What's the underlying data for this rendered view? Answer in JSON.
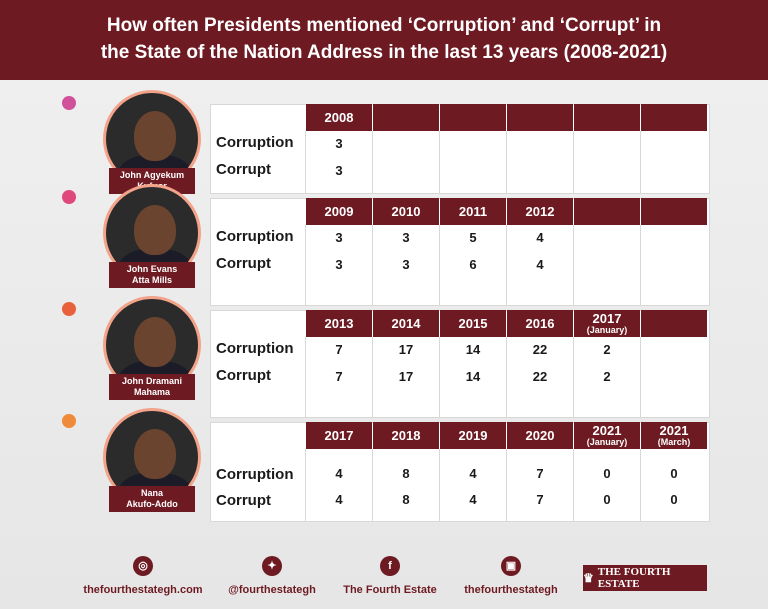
{
  "title_line1": "How often Presidents mentioned ‘Corruption’ and ‘Corrupt’ in",
  "title_line2": "the State of the Nation Address in the last 13 years (2008-2021)",
  "row_labels": {
    "corruption": "Corruption",
    "corrupt": "Corrupt"
  },
  "colors": {
    "maroon": "#6e1a22",
    "dot1": "#d0509a",
    "dot2": "#e0487c",
    "dot3": "#e8603c",
    "dot4": "#ef8a3a"
  },
  "presidents": [
    {
      "name_line1": "John  Agyekum",
      "name_line2": "Kufuor",
      "years": [
        {
          "year": "2008",
          "sub": "",
          "corruption": "3",
          "corrupt": "3"
        }
      ]
    },
    {
      "name_line1": "John Evans",
      "name_line2": "Atta Mills",
      "years": [
        {
          "year": "2009",
          "sub": "",
          "corruption": "3",
          "corrupt": "3"
        },
        {
          "year": "2010",
          "sub": "",
          "corruption": "3",
          "corrupt": "3"
        },
        {
          "year": "2011",
          "sub": "",
          "corruption": "5",
          "corrupt": "6"
        },
        {
          "year": "2012",
          "sub": "",
          "corruption": "4",
          "corrupt": "4"
        }
      ]
    },
    {
      "name_line1": "John Dramani",
      "name_line2": "Mahama",
      "years": [
        {
          "year": "2013",
          "sub": "",
          "corruption": "7",
          "corrupt": "7"
        },
        {
          "year": "2014",
          "sub": "",
          "corruption": "17",
          "corrupt": "17"
        },
        {
          "year": "2015",
          "sub": "",
          "corruption": "14",
          "corrupt": "14"
        },
        {
          "year": "2016",
          "sub": "",
          "corruption": "22",
          "corrupt": "22"
        },
        {
          "year": "2017",
          "sub": "(January)",
          "corruption": "2",
          "corrupt": "2"
        }
      ]
    },
    {
      "name_line1": "Nana",
      "name_line2": "Akufo-Addo",
      "years": [
        {
          "year": "2017",
          "sub": "",
          "corruption": "4",
          "corrupt": "4"
        },
        {
          "year": "2018",
          "sub": "",
          "corruption": "8",
          "corrupt": "8"
        },
        {
          "year": "2019",
          "sub": "",
          "corruption": "4",
          "corrupt": "4"
        },
        {
          "year": "2020",
          "sub": "",
          "corruption": "7",
          "corrupt": "7"
        },
        {
          "year": "2021",
          "sub": "(January)",
          "corruption": "0",
          "corrupt": "0"
        },
        {
          "year": "2021",
          "sub": "(March)",
          "corruption": "0",
          "corrupt": "0"
        }
      ]
    }
  ],
  "footer": [
    {
      "icon": "globe-icon",
      "glyph": "◎",
      "text": "thefourthestategh.com"
    },
    {
      "icon": "twitter-icon",
      "glyph": "✦",
      "text": "@fourthestategh"
    },
    {
      "icon": "facebook-icon",
      "glyph": "f",
      "text": "The Fourth Estate"
    },
    {
      "icon": "instagram-icon",
      "glyph": "▣",
      "text": "thefourthestategh"
    }
  ],
  "brand": "THE FOURTH ESTATE"
}
